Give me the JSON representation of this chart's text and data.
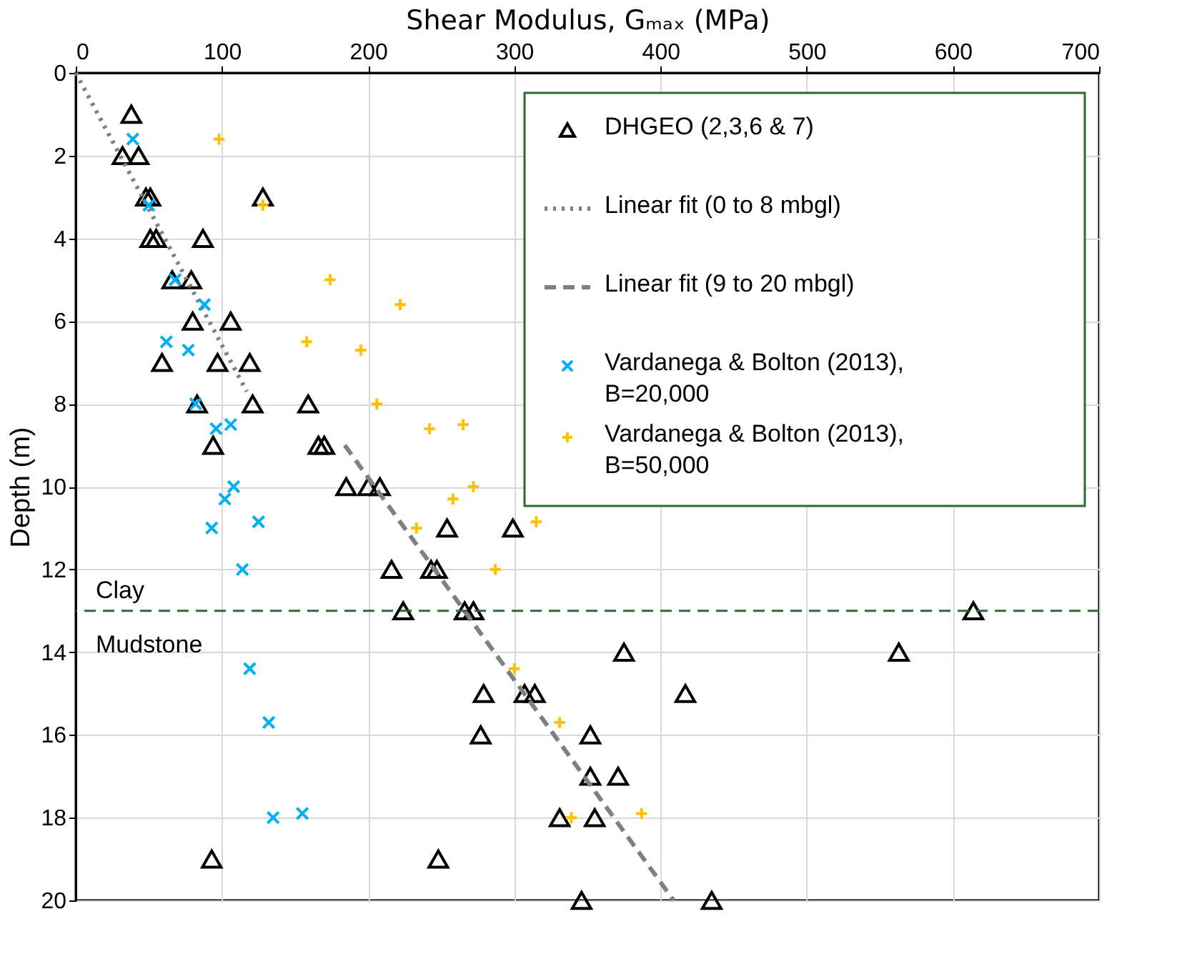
{
  "chart_data": {
    "type": "scatter",
    "xlabel": "Shear Modulus, Gₘₐₓ (MPa)",
    "ylabel": "Depth (m)",
    "xlim": [
      0,
      700
    ],
    "xticks": [
      0,
      100,
      200,
      300,
      400,
      500,
      600,
      700
    ],
    "ylim": [
      20,
      0
    ],
    "yticks": [
      0,
      2,
      4,
      6,
      8,
      10,
      12,
      14,
      16,
      18,
      20
    ],
    "grid": true,
    "legend": "top right",
    "series": [
      {
        "name": "DHGEO (2,3,6 & 7)",
        "marker": "triangle",
        "color": "#000000",
        "x": [
          38,
          32,
          43,
          48,
          51,
          128,
          51,
          55,
          87,
          66,
          79,
          80,
          106,
          59,
          97,
          119,
          83,
          121,
          159,
          94,
          166,
          170,
          185,
          200,
          208,
          254,
          299,
          216,
          243,
          247,
          224,
          266,
          272,
          614,
          375,
          563,
          279,
          307,
          314,
          417,
          277,
          352,
          352,
          371,
          331,
          355,
          93,
          248,
          346,
          435
        ],
        "values": [
          1,
          2,
          2,
          3,
          3,
          3,
          4,
          4,
          4,
          5,
          5,
          6,
          6,
          7,
          7,
          7,
          8,
          8,
          8,
          9,
          9,
          9,
          10,
          10,
          10,
          11,
          11,
          12,
          12,
          12,
          13,
          13,
          13,
          13,
          14,
          14,
          15,
          15,
          15,
          15,
          16,
          16,
          17,
          17,
          18,
          18,
          19,
          19,
          20,
          20
        ]
      },
      {
        "name": "Linear fit (0 to 8 mbgl)",
        "type": "line",
        "line_style": "dotted",
        "color": "#808080",
        "x": [
          0,
          117
        ],
        "values": [
          0,
          7.7
        ]
      },
      {
        "name": "Linear fit (9 to 20 mbgl)",
        "type": "line",
        "line_style": "dashed",
        "color": "#808080",
        "x": [
          184,
          409
        ],
        "values": [
          9,
          20
        ]
      },
      {
        "name": "Vardanega & Bolton (2013), B=20,000",
        "marker": "cross",
        "color": "#00b0f0",
        "x": [
          39,
          50,
          68,
          88,
          62,
          77,
          82,
          106,
          96,
          108,
          102,
          93,
          125,
          114,
          119,
          132,
          135,
          155
        ],
        "values": [
          1.6,
          3.2,
          5.0,
          5.6,
          6.5,
          6.7,
          8.0,
          8.5,
          8.6,
          10.0,
          10.3,
          11.0,
          10.85,
          12.0,
          14.4,
          15.7,
          18.0,
          17.9
        ]
      },
      {
        "name": "Vardanega & Bolton (2013), B=50,000",
        "marker": "plus",
        "color": "#ffc000",
        "x": [
          98,
          128,
          174,
          222,
          158,
          195,
          206,
          242,
          265,
          272,
          258,
          233,
          315,
          287,
          300,
          331,
          339,
          387
        ],
        "values": [
          1.6,
          3.2,
          5.0,
          5.6,
          6.5,
          6.7,
          8.0,
          8.6,
          8.5,
          10.0,
          10.3,
          11.0,
          10.85,
          12.0,
          14.4,
          15.7,
          18.0,
          17.9
        ]
      }
    ],
    "ref_lines": [
      {
        "axis": "y",
        "value": 13,
        "color": "#2e6b2e",
        "line_style": "dashed"
      }
    ],
    "annotations": [
      "Clay",
      "Mudstone"
    ]
  }
}
